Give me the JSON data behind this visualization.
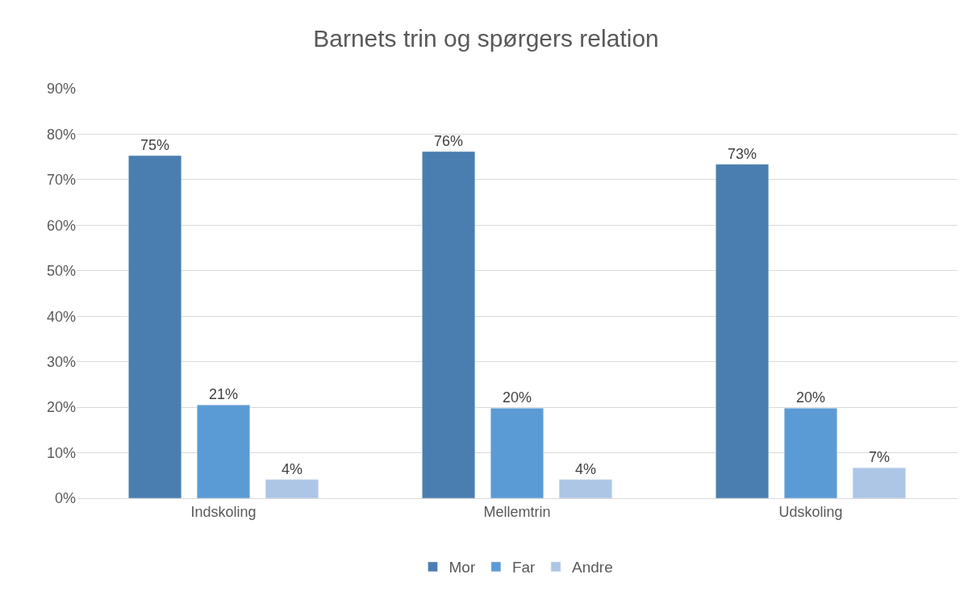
{
  "chart_data": {
    "type": "bar",
    "title": "Barnets trin og spørgers relation",
    "categories": [
      "Indskoling",
      "Mellemtrin",
      "Udskoling"
    ],
    "series": [
      {
        "name": "Mor",
        "color": "#4a7eb0",
        "values": [
          75.3,
          76.2,
          73.4
        ],
        "value_labels": [
          "75%",
          "76%",
          "73%"
        ]
      },
      {
        "name": "Far",
        "color": "#5b9bd5",
        "values": [
          20.5,
          19.8,
          19.8
        ],
        "value_labels": [
          "21%",
          "20%",
          "20%"
        ]
      },
      {
        "name": "Andre",
        "color": "#adc6e6",
        "values": [
          4.1,
          4.1,
          6.7
        ],
        "value_labels": [
          "4%",
          "4%",
          "7%"
        ]
      }
    ],
    "ylim": [
      0,
      90
    ],
    "yticks": [
      {
        "value": 0,
        "label": "0%"
      },
      {
        "value": 10,
        "label": "10%"
      },
      {
        "value": 20,
        "label": "20%"
      },
      {
        "value": 30,
        "label": "30%"
      },
      {
        "value": 40,
        "label": "40%"
      },
      {
        "value": 50,
        "label": "50%"
      },
      {
        "value": 60,
        "label": "60%"
      },
      {
        "value": 70,
        "label": "70%"
      },
      {
        "value": 80,
        "label": "80%"
      },
      {
        "value": 90,
        "label": "90%"
      }
    ],
    "grid": "y",
    "legend": "bottom"
  }
}
